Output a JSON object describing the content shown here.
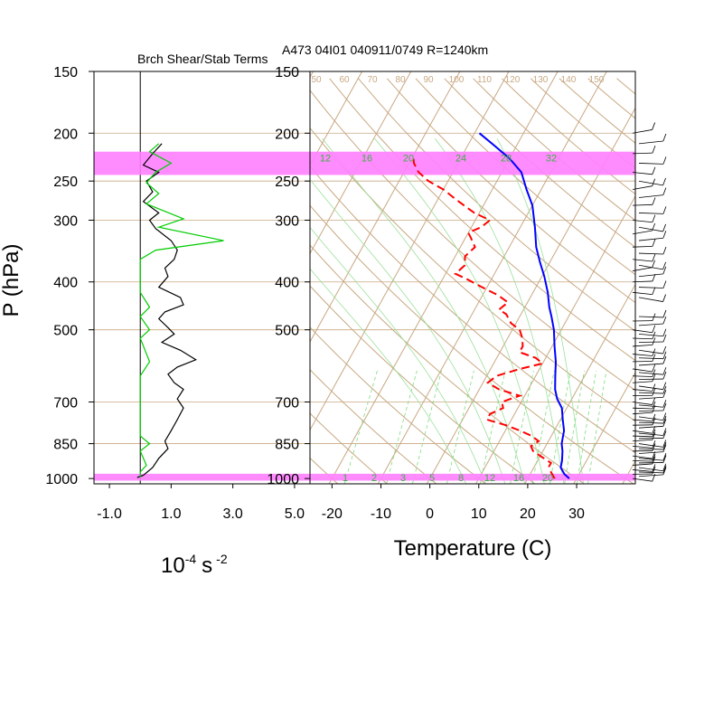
{
  "left_panel_title": "Brch Shear/Stab Terms",
  "right_panel_title": "A473 04I01 040911/0749 R=1240km",
  "pressure_axis_label": "P (hPa)",
  "shear_axis_label": {
    "base": "10",
    "exp1": "-4",
    "unit": "s",
    "exp2": "-2"
  },
  "temperature_axis_label": "Temperature (C)",
  "colors": {
    "temperature": "#0000ff",
    "dewpoint": "#ff0000",
    "shear_term": "#000000",
    "stability_term": "#00cc00",
    "isotherms": "#c8a882",
    "mixing_ratio": "#7ddc7d",
    "highlight_band": "#ff80ff"
  },
  "chart_data": [
    {
      "type": "line",
      "panel": "shear-stability",
      "title": "Brch Shear/Stab Terms",
      "xlabel": "10^-4 s^-2",
      "ylabel": "P (hPa)",
      "x_ticks": [
        "-1.0",
        "1.0",
        "3.0",
        "5.0"
      ],
      "y_ticks": [
        "150",
        "200",
        "250",
        "300",
        "400",
        "500",
        "700",
        "850",
        "1000"
      ],
      "xlim": [
        -1.5,
        5.5
      ],
      "ylim": [
        1025,
        150
      ],
      "y_scale": "log",
      "highlight_bands_hpa": [
        [
          218,
          243
        ],
        [
          978,
          1010
        ]
      ],
      "series": [
        {
          "name": "shear",
          "points": [
            [
              0.7,
              210
            ],
            [
              0.4,
              220
            ],
            [
              0.1,
              232
            ],
            [
              0.6,
              240
            ],
            [
              0.2,
              250
            ],
            [
              0.4,
              263
            ],
            [
              0.1,
              275
            ],
            [
              0.6,
              290
            ],
            [
              0.3,
              300
            ],
            [
              0.5,
              312
            ],
            [
              1.0,
              330
            ],
            [
              1.2,
              345
            ],
            [
              1.1,
              360
            ],
            [
              0.8,
              375
            ],
            [
              0.9,
              390
            ],
            [
              0.6,
              410
            ],
            [
              1.3,
              430
            ],
            [
              1.4,
              445
            ],
            [
              0.8,
              460
            ],
            [
              0.6,
              475
            ],
            [
              0.9,
              495
            ],
            [
              1.1,
              510
            ],
            [
              0.7,
              530
            ],
            [
              1.3,
              550
            ],
            [
              1.8,
              575
            ],
            [
              1.2,
              595
            ],
            [
              0.9,
              615
            ],
            [
              1.1,
              640
            ],
            [
              1.4,
              660
            ],
            [
              1.2,
              690
            ],
            [
              1.4,
              720
            ],
            [
              1.2,
              760
            ],
            [
              1.0,
              800
            ],
            [
              0.8,
              840
            ],
            [
              0.9,
              870
            ],
            [
              0.6,
              910
            ],
            [
              0.4,
              950
            ],
            [
              0.1,
              985
            ],
            [
              -0.1,
              995
            ]
          ]
        },
        {
          "name": "stability",
          "points": [
            [
              0.6,
              210
            ],
            [
              0.3,
              218
            ],
            [
              1.0,
              230
            ],
            [
              0.5,
              240
            ],
            [
              0.2,
              252
            ],
            [
              0.6,
              265
            ],
            [
              0.2,
              278
            ],
            [
              1.4,
              298
            ],
            [
              0.6,
              310
            ],
            [
              2.7,
              330
            ],
            [
              0.5,
              345
            ],
            [
              0.0,
              360
            ],
            [
              0.0,
              420
            ],
            [
              0.3,
              450
            ],
            [
              0.0,
              470
            ],
            [
              0.3,
              500
            ],
            [
              0.0,
              520
            ],
            [
              0.3,
              580
            ],
            [
              0.0,
              620
            ],
            [
              0.0,
              820
            ],
            [
              0.3,
              850
            ],
            [
              0.0,
              880
            ],
            [
              0.2,
              940
            ],
            [
              0.0,
              970
            ],
            [
              0.0,
              995
            ]
          ]
        }
      ]
    },
    {
      "type": "line",
      "panel": "skew-t",
      "title": "A473 04I01 040911/0749 R=1240km",
      "xlabel": "Temperature (C)",
      "ylabel": "P (hPa)",
      "x_ticks": [
        "-20",
        "-10",
        "0",
        "10",
        "20",
        "30"
      ],
      "y_ticks": [
        "150",
        "200",
        "250",
        "300",
        "400",
        "500",
        "700",
        "850",
        "1000"
      ],
      "xlim": [
        -24.5,
        42
      ],
      "ylim": [
        1025,
        150
      ],
      "y_scale": "log",
      "skew_deg_per_decade_log10p": 100,
      "mixing_ratio_labels": [
        "12",
        "16",
        "20",
        "24",
        "28",
        "32"
      ],
      "mixing_ratio_bottom_labels": [
        "1",
        "2",
        "3",
        "5",
        "8",
        "12",
        "16",
        "20"
      ],
      "mixing_ratio_values": [
        1,
        2,
        3,
        5,
        8,
        12,
        16,
        20,
        24,
        28,
        32
      ],
      "isotherm_labels": [
        "50",
        "60",
        "70",
        "80",
        "90",
        "100",
        "110",
        "120",
        "130",
        "140",
        "150"
      ],
      "highlight_bands_hpa": [
        [
          218,
          243
        ],
        [
          978,
          1010
        ]
      ],
      "series": [
        {
          "name": "temperature",
          "points": [
            [
              28.5,
              1000
            ],
            [
              27,
              980
            ],
            [
              25.5,
              950
            ],
            [
              25,
              920
            ],
            [
              24,
              880
            ],
            [
              23,
              850
            ],
            [
              22,
              800
            ],
            [
              20.5,
              760
            ],
            [
              19,
              720
            ],
            [
              17,
              690
            ],
            [
              15.5,
              660
            ],
            [
              14,
              620
            ],
            [
              12.5,
              580
            ],
            [
              10.5,
              540
            ],
            [
              8.5,
              500
            ],
            [
              6.5,
              470
            ],
            [
              5,
              450
            ],
            [
              3,
              420
            ],
            [
              0.5,
              390
            ],
            [
              -2,
              365
            ],
            [
              -4.5,
              340
            ],
            [
              -7,
              310
            ],
            [
              -10,
              280
            ],
            [
              -13,
              260
            ],
            [
              -16,
              240
            ],
            [
              -20,
              225
            ],
            [
              -24.5,
              212
            ],
            [
              -29,
              200
            ]
          ]
        },
        {
          "name": "dewpoint",
          "points": [
            [
              25.5,
              1000
            ],
            [
              24,
              970
            ],
            [
              23,
              945
            ],
            [
              23,
              930
            ],
            [
              20.5,
              905
            ],
            [
              18,
              880
            ],
            [
              17,
              860
            ],
            [
              18,
              840
            ],
            [
              16,
              820
            ],
            [
              13,
              800
            ],
            [
              9.5,
              780
            ],
            [
              5,
              760
            ],
            [
              5,
              740
            ],
            [
              7,
              720
            ],
            [
              6,
              700
            ],
            [
              9,
              680
            ],
            [
              4,
              660
            ],
            [
              1,
              640
            ],
            [
              2,
              620
            ],
            [
              6,
              600
            ],
            [
              10,
              585
            ],
            [
              8,
              570
            ],
            [
              4,
              555
            ],
            [
              4,
              540
            ],
            [
              3,
              520
            ],
            [
              1.5,
              500
            ],
            [
              -1,
              485
            ],
            [
              -2,
              475
            ],
            [
              -3,
              465
            ],
            [
              -5,
              455
            ],
            [
              -4,
              440
            ],
            [
              -7,
              425
            ],
            [
              -11,
              410
            ],
            [
              -15,
              395
            ],
            [
              -18,
              385
            ],
            [
              -17,
              370
            ],
            [
              -18,
              355
            ],
            [
              -17,
              340
            ],
            [
              -19,
              325
            ],
            [
              -20,
              318
            ],
            [
              -18,
              310
            ],
            [
              -17,
              300
            ],
            [
              -21,
              290
            ],
            [
              -24,
              280
            ],
            [
              -27,
              270
            ],
            [
              -30,
              260
            ],
            [
              -34,
              250
            ],
            [
              -37,
              240
            ],
            [
              -39,
              230
            ],
            [
              -40,
              222
            ]
          ]
        }
      ]
    }
  ]
}
